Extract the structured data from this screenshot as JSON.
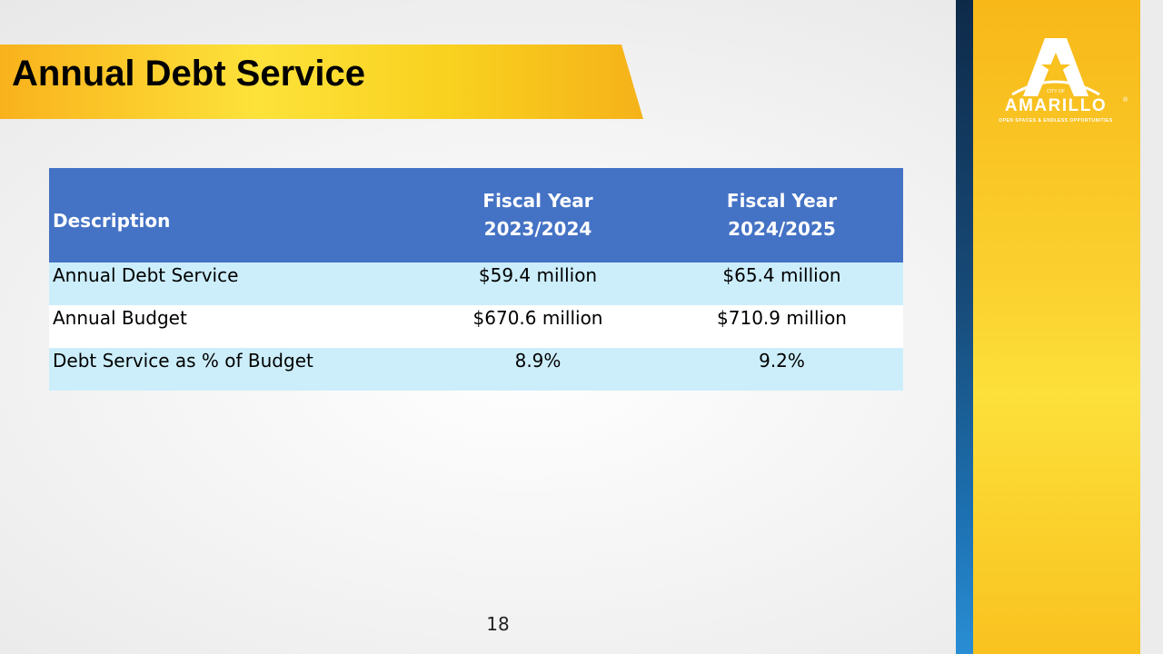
{
  "slide": {
    "title": "Annual Debt Service",
    "page_number": "18"
  },
  "table": {
    "headers": [
      "Description",
      "Fiscal Year 2023/2024",
      "Fiscal Year 2024/2025"
    ],
    "header_lines": [
      [
        "Description"
      ],
      [
        "Fiscal Year",
        "2023/2024"
      ],
      [
        "Fiscal Year",
        "2024/2025"
      ]
    ],
    "rows": [
      {
        "description": "Annual Debt Service",
        "fy_2023_2024": "$59.4 million",
        "fy_2024_2025": "$65.4 million"
      },
      {
        "description": "Annual Budget",
        "fy_2023_2024": "$670.6 million",
        "fy_2024_2025": "$710.9 million"
      },
      {
        "description": "Debt Service as % of Budget",
        "fy_2023_2024": "8.9%",
        "fy_2024_2025": "9.2%"
      }
    ]
  },
  "logo": {
    "small_text": "CITY OF",
    "wordmark": "AMARILLO",
    "registered": "®",
    "tagline": "OPEN SPACES & ENDLESS OPPORTUNITIES",
    "icon": "star-a-icon"
  },
  "colors": {
    "header_blue": "#4472c4",
    "row_light_blue": "#cceefb",
    "banner_yellow": "#fde23a",
    "banner_orange": "#f9b21c",
    "side_blue": "#174a78"
  }
}
